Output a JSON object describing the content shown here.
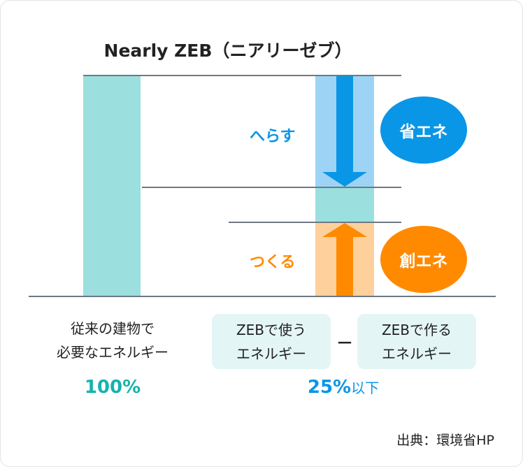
{
  "title": "Nearly ZEB（ニアリーゼブ）",
  "labels": {
    "reduce": "へらす",
    "create": "つくる"
  },
  "badges": {
    "save_energy": "省エネ",
    "create_energy": "創エネ"
  },
  "left": {
    "line1": "従来の建物で",
    "line2": "必要なエネルギー",
    "value": "100%"
  },
  "right": {
    "box1": {
      "line1": "ZEBで使う",
      "line2": "エネルギー"
    },
    "operator": "－",
    "box2": {
      "line1": "ZEBで作る",
      "line2": "エネルギー"
    },
    "value_num": "25%",
    "value_suffix": "以下"
  },
  "source": "出典：環境省HP",
  "colors": {
    "teal": "#9be0de",
    "blue": "#0a96e6",
    "blue_light": "#9dd4f5",
    "orange": "#ff8a00",
    "orange_light": "#fdd09c",
    "teal_text": "#16b3ad"
  }
}
